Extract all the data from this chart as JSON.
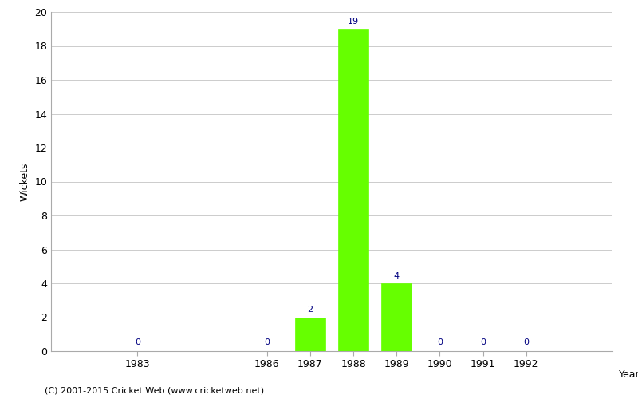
{
  "years": [
    1983,
    1986,
    1987,
    1988,
    1989,
    1990,
    1991,
    1992
  ],
  "wickets": [
    0,
    0,
    2,
    19,
    4,
    0,
    0,
    0
  ],
  "bar_color": "#66ff00",
  "bar_edge_color": "#66ff00",
  "label_color": "#000080",
  "ylabel": "Wickets",
  "xlabel": "Year",
  "ylim": [
    0,
    20
  ],
  "yticks": [
    0,
    2,
    4,
    6,
    8,
    10,
    12,
    14,
    16,
    18,
    20
  ],
  "grid_color": "#cccccc",
  "bg_color": "#ffffff",
  "footer_text": "(C) 2001-2015 Cricket Web (www.cricketweb.net)",
  "label_fontsize": 8,
  "axis_fontsize": 9,
  "footer_fontsize": 8,
  "xlim": [
    1981,
    1994
  ]
}
